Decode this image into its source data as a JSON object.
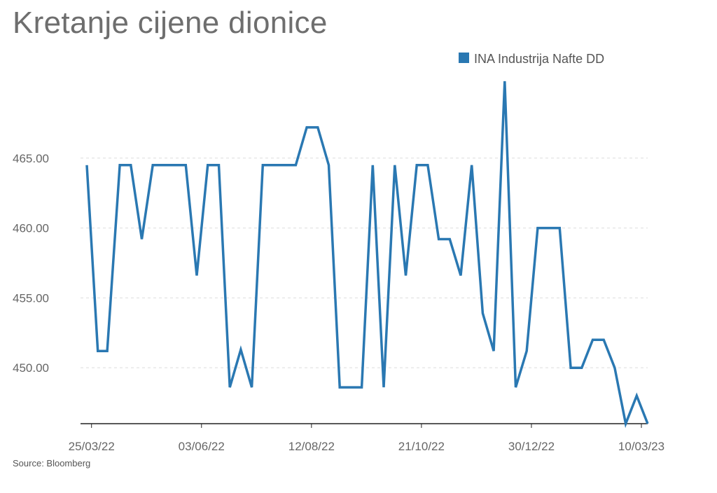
{
  "title": "Kretanje cijene dionice",
  "source": "Source: Bloomberg",
  "colors": {
    "series": "#2a78b2",
    "grid": "#dddddd",
    "axis": "#222222",
    "title": "#6e6e6e"
  },
  "chart_data": {
    "type": "line",
    "title": "Kretanje cijene dionice",
    "xlabel": "",
    "ylabel": "",
    "x_range": [
      "2022-03-18",
      "2023-03-14"
    ],
    "ylim": [
      446,
      470.5
    ],
    "y_ticks": [
      450,
      455,
      460,
      465
    ],
    "y_tick_labels": [
      "450.00",
      "455.00",
      "460.00",
      "465.00"
    ],
    "x_ticks": [
      "2022-03-25",
      "2022-06-03",
      "2022-08-12",
      "2022-10-21",
      "2022-12-30",
      "2023-03-10"
    ],
    "x_tick_labels": [
      "25/03/22",
      "03/06/22",
      "12/08/22",
      "21/10/22",
      "30/12/22",
      "10/03/23"
    ],
    "grid": "horizontal dashed",
    "legend": "top-right",
    "series": [
      {
        "name": "INA Industrija Nafte DD",
        "points": [
          [
            "2022-03-22",
            464.5
          ],
          [
            "2022-03-29",
            451.2
          ],
          [
            "2022-04-04",
            451.2
          ],
          [
            "2022-04-12",
            464.5
          ],
          [
            "2022-04-19",
            464.5
          ],
          [
            "2022-04-26",
            459.2
          ],
          [
            "2022-05-03",
            464.5
          ],
          [
            "2022-05-10",
            464.5
          ],
          [
            "2022-05-17",
            464.5
          ],
          [
            "2022-05-24",
            464.5
          ],
          [
            "2022-05-31",
            456.6
          ],
          [
            "2022-06-07",
            464.5
          ],
          [
            "2022-06-14",
            464.5
          ],
          [
            "2022-06-21",
            448.6
          ],
          [
            "2022-06-28",
            451.3
          ],
          [
            "2022-07-05",
            448.6
          ],
          [
            "2022-07-12",
            464.5
          ],
          [
            "2022-07-19",
            464.5
          ],
          [
            "2022-07-26",
            464.5
          ],
          [
            "2022-08-02",
            464.5
          ],
          [
            "2022-08-09",
            467.2
          ],
          [
            "2022-08-16",
            467.2
          ],
          [
            "2022-08-23",
            464.5
          ],
          [
            "2022-08-30",
            448.6
          ],
          [
            "2022-09-06",
            448.6
          ],
          [
            "2022-09-13",
            448.6
          ],
          [
            "2022-09-20",
            464.5
          ],
          [
            "2022-09-27",
            448.6
          ],
          [
            "2022-10-04",
            464.5
          ],
          [
            "2022-10-11",
            456.6
          ],
          [
            "2022-10-18",
            464.5
          ],
          [
            "2022-10-25",
            464.5
          ],
          [
            "2022-11-01",
            459.2
          ],
          [
            "2022-11-08",
            459.2
          ],
          [
            "2022-11-15",
            456.6
          ],
          [
            "2022-11-22",
            464.5
          ],
          [
            "2022-11-29",
            453.9
          ],
          [
            "2022-12-06",
            451.2
          ],
          [
            "2022-12-13",
            470.5
          ],
          [
            "2022-12-20",
            448.6
          ],
          [
            "2022-12-27",
            451.2
          ],
          [
            "2023-01-03",
            460.0
          ],
          [
            "2023-01-10",
            460.0
          ],
          [
            "2023-01-17",
            460.0
          ],
          [
            "2023-01-24",
            450.0
          ],
          [
            "2023-01-31",
            450.0
          ],
          [
            "2023-02-07",
            452.0
          ],
          [
            "2023-02-14",
            452.0
          ],
          [
            "2023-02-21",
            450.0
          ],
          [
            "2023-02-28",
            446.0
          ],
          [
            "2023-03-07",
            448.0
          ],
          [
            "2023-03-14",
            446.0
          ]
        ]
      }
    ]
  }
}
